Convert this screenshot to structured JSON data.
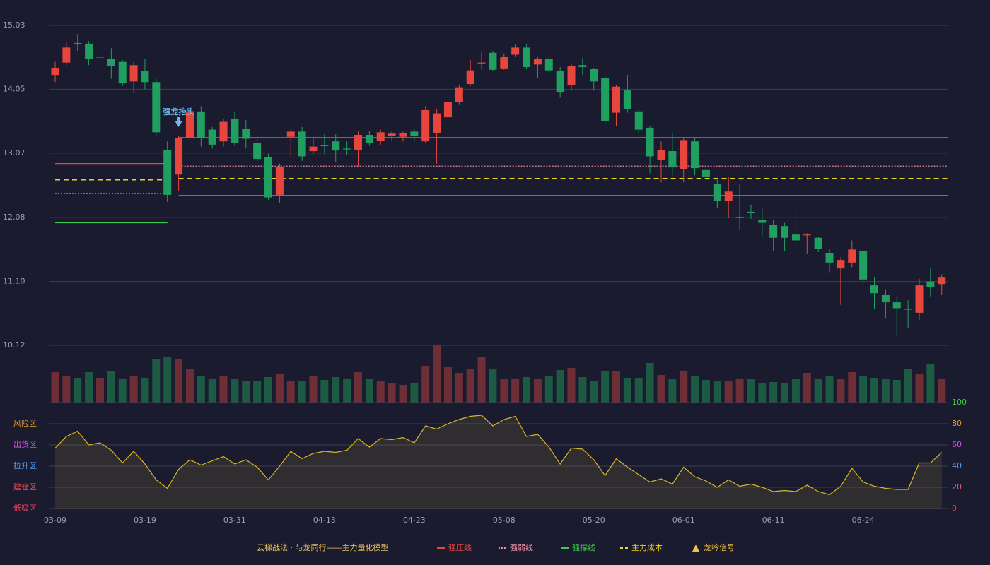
{
  "chart_data": [
    {
      "type": "candlestick",
      "categories": [
        "03-09",
        null,
        null,
        null,
        null,
        null,
        null,
        null,
        "03-19",
        null,
        null,
        null,
        null,
        null,
        null,
        null,
        "03-31",
        null,
        null,
        null,
        null,
        null,
        null,
        null,
        "04-13",
        null,
        null,
        null,
        null,
        null,
        null,
        null,
        "04-23",
        null,
        null,
        null,
        null,
        null,
        null,
        null,
        "05-08",
        null,
        null,
        null,
        null,
        null,
        null,
        null,
        "05-20",
        null,
        null,
        null,
        null,
        null,
        null,
        null,
        "06-01",
        null,
        null,
        null,
        null,
        null,
        null,
        null,
        "06-11",
        null,
        null,
        null,
        null,
        null,
        null,
        null,
        "06-24",
        null,
        null,
        null,
        null,
        null,
        null,
        null
      ],
      "open": [
        14.27,
        14.46,
        14.76,
        14.75,
        14.54,
        14.51,
        14.47,
        14.17,
        14.33,
        14.16,
        13.12,
        12.74,
        13.31,
        13.71,
        13.43,
        13.25,
        13.6,
        13.44,
        13.22,
        13.01,
        12.43,
        13.32,
        13.4,
        13.1,
        13.19,
        13.25,
        13.14,
        13.12,
        13.35,
        13.26,
        13.33,
        13.32,
        13.4,
        13.25,
        13.38,
        13.62,
        13.85,
        14.13,
        14.45,
        14.61,
        14.37,
        14.58,
        14.69,
        14.43,
        14.52,
        14.33,
        14.11,
        14.42,
        14.36,
        14.22,
        13.69,
        14.04,
        13.71,
        13.46,
        12.96,
        13.1,
        12.82,
        13.25,
        12.81,
        12.6,
        12.34,
        12.08,
        12.17,
        12.04,
        11.97,
        11.95,
        11.82,
        11.81,
        11.77,
        11.54,
        11.3,
        11.39,
        11.57,
        11.04,
        10.89,
        10.78,
        10.68,
        10.62,
        11.1,
        11.06
      ],
      "high": [
        14.47,
        14.77,
        14.9,
        14.79,
        14.8,
        14.68,
        14.5,
        14.47,
        14.51,
        14.23,
        13.25,
        13.34,
        13.74,
        13.79,
        13.47,
        13.6,
        13.71,
        13.58,
        13.36,
        13.06,
        12.91,
        13.45,
        13.47,
        13.3,
        13.36,
        13.36,
        13.25,
        13.4,
        13.41,
        13.43,
        13.4,
        13.4,
        13.44,
        13.79,
        13.74,
        13.88,
        14.12,
        14.5,
        14.63,
        14.64,
        14.6,
        14.75,
        14.75,
        14.55,
        14.55,
        14.39,
        14.45,
        14.53,
        14.38,
        14.27,
        14.12,
        14.27,
        13.75,
        13.49,
        13.25,
        13.38,
        13.31,
        13.3,
        12.85,
        12.66,
        12.71,
        12.6,
        12.28,
        12.23,
        12.04,
        12.0,
        12.19,
        11.84,
        11.78,
        11.6,
        11.47,
        11.73,
        11.58,
        11.17,
        10.98,
        10.87,
        10.81,
        11.14,
        11.3,
        11.21
      ],
      "low": [
        14.16,
        14.42,
        14.64,
        14.42,
        14.41,
        14.21,
        14.1,
        13.99,
        14.05,
        13.34,
        12.32,
        12.49,
        13.25,
        13.17,
        13.14,
        13.17,
        13.18,
        13.14,
        12.95,
        12.35,
        12.31,
        13.01,
        12.95,
        13.06,
        13.06,
        12.93,
        13.04,
        12.87,
        13.18,
        13.2,
        13.25,
        13.25,
        13.25,
        13.23,
        12.91,
        13.6,
        13.82,
        14.1,
        14.35,
        14.33,
        14.35,
        14.55,
        14.37,
        14.23,
        14.29,
        13.92,
        14.03,
        14.27,
        14.03,
        13.5,
        13.49,
        13.69,
        13.38,
        12.76,
        12.62,
        12.73,
        12.62,
        12.73,
        12.46,
        12.22,
        12.08,
        11.9,
        12.06,
        11.79,
        11.57,
        11.57,
        11.57,
        11.52,
        11.55,
        11.24,
        10.74,
        11.32,
        11.08,
        10.68,
        10.54,
        10.27,
        10.38,
        10.51,
        10.87,
        10.89
      ],
      "close": [
        14.38,
        14.69,
        14.75,
        14.51,
        14.55,
        14.41,
        14.14,
        14.42,
        14.16,
        13.39,
        12.43,
        13.3,
        13.71,
        13.31,
        13.2,
        13.55,
        13.22,
        13.29,
        12.98,
        12.39,
        12.86,
        13.4,
        13.02,
        13.17,
        13.18,
        13.11,
        13.13,
        13.35,
        13.23,
        13.39,
        13.37,
        13.38,
        13.33,
        13.73,
        13.68,
        13.85,
        14.08,
        14.34,
        14.46,
        14.35,
        14.55,
        14.69,
        14.39,
        14.51,
        14.34,
        14.01,
        14.41,
        14.39,
        14.17,
        13.56,
        14.09,
        13.74,
        13.43,
        13.02,
        13.12,
        12.85,
        13.27,
        12.84,
        12.7,
        12.34,
        12.48,
        12.09,
        12.16,
        12.0,
        11.77,
        11.77,
        11.73,
        11.82,
        11.6,
        11.39,
        11.43,
        11.59,
        11.13,
        10.92,
        10.78,
        10.69,
        10.67,
        11.04,
        11.02,
        11.17
      ],
      "up_color": "#e8463c",
      "down_color": "#1fa060",
      "ylim": [
        10.12,
        15.03
      ],
      "yticks": [
        15.03,
        14.05,
        13.07,
        12.08,
        {
          "value": 11.1,
          "label": "11.10"
        },
        10.12
      ],
      "grid": true,
      "lines": [
        {
          "name": "强压线",
          "color": "#e8463c",
          "style": "solid",
          "segments": [
            {
              "start": 0,
              "end": 10,
              "value": 12.91
            },
            {
              "start": 11,
              "end": 79,
              "value": 13.31
            }
          ]
        },
        {
          "name": "强弱线",
          "color": "#f08aa0",
          "style": "dotted",
          "segments": [
            {
              "start": 0,
              "end": 10,
              "value": 12.45
            },
            {
              "start": 11,
              "end": 79,
              "value": 12.87
            }
          ]
        },
        {
          "name": "强撑线",
          "color": "#40c850",
          "style": "solid",
          "segments": [
            {
              "start": 0,
              "end": 10,
              "value": 12.0
            },
            {
              "start": 11,
              "end": 79,
              "value": 12.42
            }
          ]
        },
        {
          "name": "主力成本",
          "color": "#f0d020",
          "style": "dashed",
          "segments": [
            {
              "start": 0,
              "end": 10,
              "value": 12.66
            },
            {
              "start": 11,
              "end": 79,
              "value": 12.68
            }
          ]
        }
      ],
      "signal_name": "龙吟信号",
      "signal_color": "#f0c040",
      "signals": [
        {
          "index": 11,
          "label": "强龙抬头",
          "color": "#6ab8f0"
        }
      ],
      "legend_title": "云梯战法 · 与龙同行——主力量化模型"
    },
    {
      "type": "bar",
      "values": [
        43,
        37,
        35,
        43,
        35,
        45,
        34,
        37,
        35,
        62,
        65,
        61,
        47,
        37,
        33,
        37,
        33,
        30,
        31,
        36,
        40,
        30,
        31,
        37,
        32,
        36,
        34,
        43,
        33,
        30,
        28,
        25,
        27,
        52,
        81,
        50,
        42,
        48,
        64,
        47,
        33,
        33,
        36,
        34,
        38,
        46,
        49,
        36,
        31,
        45,
        45,
        35,
        35,
        56,
        39,
        33,
        45,
        37,
        32,
        30,
        30,
        34,
        34,
        27,
        29,
        27,
        34,
        42,
        33,
        38,
        34,
        43,
        37,
        35,
        33,
        32,
        48,
        40,
        54,
        34
      ],
      "up_color": "#6e2e36",
      "down_color": "#1d5a44"
    },
    {
      "type": "area",
      "values": [
        57,
        68,
        73,
        60,
        62,
        55,
        43,
        54,
        42,
        27,
        19,
        37,
        46,
        41,
        45,
        49,
        42,
        46,
        39,
        27,
        40,
        54,
        47,
        52,
        54,
        53,
        55,
        66,
        58,
        66,
        65,
        67,
        62,
        78,
        75,
        80,
        84,
        87,
        88,
        78,
        84,
        87,
        68,
        70,
        58,
        42,
        57,
        56,
        46,
        31,
        47,
        39,
        32,
        25,
        28,
        23,
        39,
        30,
        26,
        20,
        27,
        21,
        23,
        20,
        16,
        17,
        16,
        22,
        16,
        13,
        21,
        38,
        25,
        21,
        19,
        18,
        18,
        43,
        43,
        53
      ],
      "color": "#d8b828",
      "ylim": [
        0,
        100
      ],
      "yticks": [
        0,
        20,
        40,
        60,
        80,
        100
      ],
      "tick_colors": [
        "#e04040",
        "#f05a7a",
        "#5b9bf0",
        "#e050e0",
        "#e8a030",
        "#40d040"
      ],
      "zones": [
        {
          "label": "风险区",
          "value": 80,
          "color": "#e8a030"
        },
        {
          "label": "出货区",
          "value": 60,
          "color": "#e050e0"
        },
        {
          "label": "拉升区",
          "value": 40,
          "color": "#5b9bf0"
        },
        {
          "label": "建仓区",
          "value": 20,
          "color": "#f05050"
        },
        {
          "label": "低吸区",
          "value": 0,
          "color": "#f04060"
        }
      ]
    }
  ]
}
